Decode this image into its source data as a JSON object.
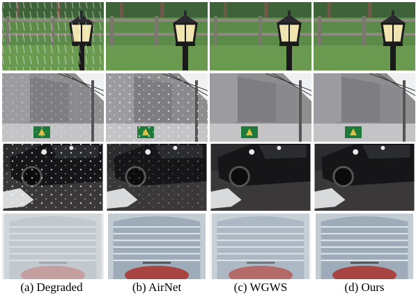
{
  "captions": [
    "(a) Degraded",
    "(b) AirNet",
    "(c) WGWS",
    "(d) Ours"
  ]
}
